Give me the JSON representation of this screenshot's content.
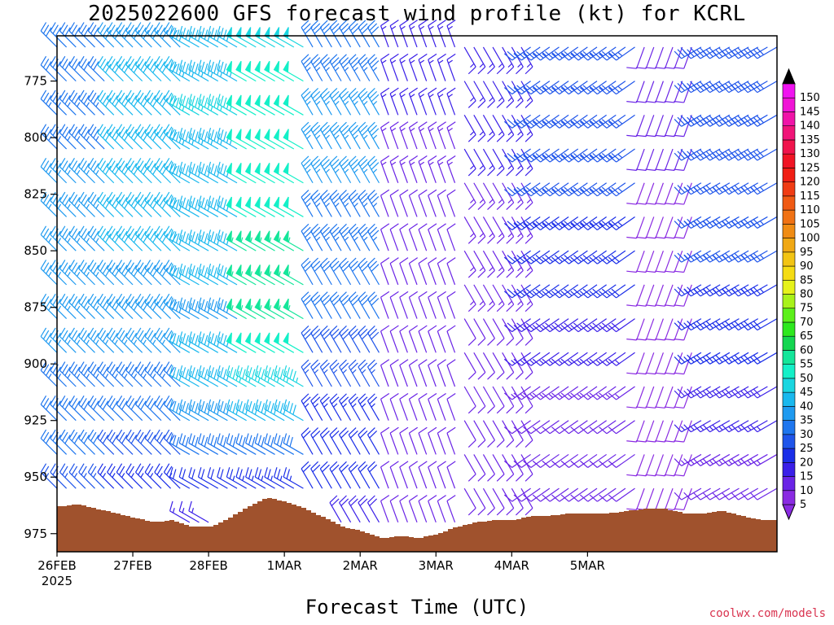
{
  "title": "2025022600 GFS forecast wind profile (kt) for KCRL",
  "xlabel": "Forecast Time (UTC)",
  "credit": "coolwx.com/models",
  "chart_data": {
    "type": "wind-barb-profile",
    "title": "2025022600 GFS forecast wind profile (kt) for KCRL",
    "xlabel": "Forecast Time (UTC)",
    "ylabel": "",
    "units": "kt",
    "x_tick_labels": [
      "26FEB",
      "27FEB",
      "28FEB",
      "1MAR",
      "2MAR",
      "3MAR",
      "4MAR",
      "5MAR"
    ],
    "x_year_label": "2025",
    "x_range_hours": [
      0,
      228
    ],
    "y_tick_labels": [
      775,
      800,
      825,
      850,
      875,
      900,
      925,
      950,
      975
    ],
    "y_range_hPa": [
      755,
      983
    ],
    "y_inverted": true,
    "barb_levels_hPa": [
      760,
      775,
      790,
      805,
      820,
      835,
      850,
      865,
      880,
      895,
      910,
      925,
      940,
      955,
      970
    ],
    "time_step_hours": 3,
    "colorbar": {
      "levels": [
        5,
        10,
        15,
        20,
        25,
        30,
        35,
        40,
        45,
        50,
        55,
        60,
        65,
        70,
        75,
        80,
        85,
        90,
        95,
        100,
        105,
        110,
        115,
        120,
        125,
        130,
        135,
        140,
        145,
        150
      ],
      "colors": [
        "#8a2be2",
        "#6a24e6",
        "#3a1fe8",
        "#1a2ee8",
        "#1f55ea",
        "#1e76ee",
        "#1e9af0",
        "#19b8ee",
        "#1ad6e0",
        "#14f0c8",
        "#14e69a",
        "#14d650",
        "#2ee81e",
        "#5cf01a",
        "#a8f21a",
        "#e6f21a",
        "#f5dc14",
        "#f2c414",
        "#f0a814",
        "#f08c14",
        "#f07214",
        "#f05a14",
        "#f03c14",
        "#f01e14",
        "#f01424",
        "#f0144c",
        "#f01478",
        "#f014a8",
        "#f014d6",
        "#f014f0"
      ],
      "label_values": [
        5,
        10,
        15,
        20,
        25,
        30,
        35,
        40,
        45,
        50,
        55,
        60,
        65,
        70,
        75,
        80,
        85,
        90,
        95,
        100,
        105,
        110,
        115,
        120,
        125,
        130,
        135,
        140,
        145,
        150
      ]
    },
    "terrain_color": "#a0522d",
    "surface_pressure_hPa": [
      {
        "h": 0,
        "p": 963
      },
      {
        "h": 6,
        "p": 962
      },
      {
        "h": 12,
        "p": 964
      },
      {
        "h": 18,
        "p": 966
      },
      {
        "h": 24,
        "p": 968
      },
      {
        "h": 30,
        "p": 970
      },
      {
        "h": 36,
        "p": 969
      },
      {
        "h": 42,
        "p": 972
      },
      {
        "h": 48,
        "p": 972
      },
      {
        "h": 54,
        "p": 968
      },
      {
        "h": 60,
        "p": 963
      },
      {
        "h": 66,
        "p": 959
      },
      {
        "h": 72,
        "p": 961
      },
      {
        "h": 78,
        "p": 964
      },
      {
        "h": 84,
        "p": 968
      },
      {
        "h": 90,
        "p": 972
      },
      {
        "h": 96,
        "p": 974
      },
      {
        "h": 102,
        "p": 977
      },
      {
        "h": 108,
        "p": 976
      },
      {
        "h": 114,
        "p": 977
      },
      {
        "h": 120,
        "p": 975
      },
      {
        "h": 126,
        "p": 972
      },
      {
        "h": 132,
        "p": 970
      },
      {
        "h": 138,
        "p": 969
      },
      {
        "h": 144,
        "p": 969
      },
      {
        "h": 150,
        "p": 967
      },
      {
        "h": 156,
        "p": 967
      },
      {
        "h": 162,
        "p": 966
      },
      {
        "h": 168,
        "p": 966
      },
      {
        "h": 174,
        "p": 966
      },
      {
        "h": 180,
        "p": 965
      },
      {
        "h": 186,
        "p": 964
      },
      {
        "h": 192,
        "p": 964
      },
      {
        "h": 198,
        "p": 966
      },
      {
        "h": 204,
        "p": 966
      },
      {
        "h": 210,
        "p": 965
      },
      {
        "h": 216,
        "p": 967
      },
      {
        "h": 222,
        "p": 969
      },
      {
        "h": 228,
        "p": 969
      }
    ],
    "wind_segments": [
      {
        "from_h": 0,
        "to_h": 18,
        "speed_kt": 33,
        "dir_deg": 315,
        "speed_by_level": [
          30,
          32,
          33,
          34,
          35,
          35,
          36,
          36,
          36,
          35,
          34,
          32,
          30,
          27,
          24
        ]
      },
      {
        "from_h": 18,
        "to_h": 40,
        "speed_kt": 38,
        "dir_deg": 315,
        "speed_by_level": [
          38,
          40,
          40,
          40,
          40,
          40,
          40,
          39,
          38,
          36,
          34,
          32,
          28,
          24,
          20
        ]
      },
      {
        "from_h": 40,
        "to_h": 60,
        "speed_kt": 40,
        "dir_deg": 300,
        "speed_by_level": [
          42,
          44,
          45,
          43,
          42,
          42,
          42,
          40,
          38,
          40,
          42,
          38,
          30,
          22,
          16
        ]
      },
      {
        "from_h": 60,
        "to_h": 80,
        "speed_kt": 46,
        "dir_deg": 300,
        "speed_by_level": [
          48,
          50,
          50,
          50,
          52,
          52,
          55,
          55,
          55,
          50,
          46,
          40,
          32,
          24,
          18
        ]
      },
      {
        "from_h": 80,
        "to_h": 104,
        "speed_kt": 32,
        "dir_deg": 330,
        "speed_by_level": [
          32,
          34,
          35,
          35,
          35,
          34,
          33,
          32,
          30,
          28,
          26,
          24,
          22,
          20,
          18
        ]
      },
      {
        "from_h": 104,
        "to_h": 128,
        "speed_kt": 14,
        "dir_deg": 340,
        "speed_by_level": [
          16,
          16,
          15,
          14,
          13,
          12,
          12,
          12,
          12,
          11,
          10,
          10,
          10,
          10,
          10
        ]
      },
      {
        "from_h": 128,
        "to_h": 150,
        "speed_kt": 15,
        "dir_deg": 150,
        "speed_by_level": [
          15,
          15,
          15,
          15,
          14,
          14,
          13,
          13,
          12,
          12,
          12,
          12,
          12,
          12,
          12
        ]
      },
      {
        "from_h": 150,
        "to_h": 186,
        "speed_kt": 22,
        "dir_deg": 235,
        "speed_by_level": [
          26,
          26,
          26,
          25,
          25,
          24,
          22,
          20,
          18,
          16,
          14,
          12,
          10,
          10,
          10
        ]
      },
      {
        "from_h": 186,
        "to_h": 204,
        "speed_kt": 10,
        "dir_deg": 200,
        "speed_by_level": [
          10,
          10,
          10,
          10,
          9,
          9,
          9,
          8,
          8,
          8,
          8,
          8,
          8,
          8,
          8
        ]
      },
      {
        "from_h": 204,
        "to_h": 228,
        "speed_kt": 25,
        "dir_deg": 240,
        "speed_by_level": [
          28,
          28,
          28,
          28,
          27,
          26,
          25,
          24,
          22,
          20,
          18,
          16,
          14,
          12,
          10
        ]
      }
    ]
  }
}
